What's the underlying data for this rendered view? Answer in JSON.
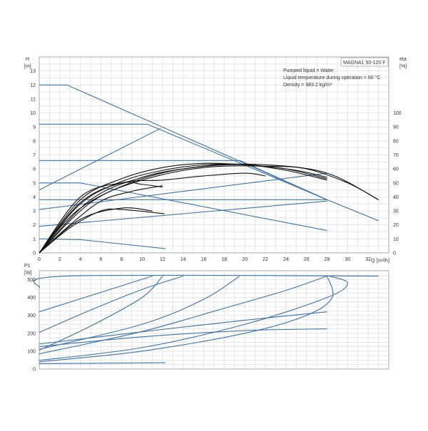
{
  "model_label": "MAGNA1 50-120 F",
  "info_lines": [
    "Pumped liquid = Water",
    "Liquid temperature during operation = 60 °C",
    "Density = 983.2 kg/m³"
  ],
  "colors": {
    "system_curves": "#3f73a0",
    "pump_curves": "#111111"
  },
  "chart_data": [
    {
      "type": "line",
      "name": "head",
      "ylabel": "H",
      "yunit": "[m]",
      "y2label": "eta",
      "y2unit": "[%]",
      "xlabel": "Q",
      "xunit": "[m³/h]",
      "xlim": [
        0,
        34
      ],
      "ylim": [
        0,
        14
      ],
      "y2lim": [
        0,
        140
      ],
      "x_ticks": [
        0,
        2,
        4,
        6,
        8,
        10,
        12,
        14,
        16,
        18,
        20,
        22,
        24,
        26,
        28,
        30,
        32
      ],
      "y_ticks": [
        0,
        1,
        2,
        3,
        4,
        5,
        6,
        7,
        8,
        9,
        10,
        11,
        12,
        13
      ],
      "y2_ticks": [
        0,
        10,
        20,
        30,
        40,
        50,
        60,
        70,
        80,
        90,
        100
      ],
      "grid": true,
      "control_curves": [
        {
          "points": [
            [
              0,
              12
            ],
            [
              2.7,
              12
            ],
            [
              28,
              3.8
            ],
            [
              33,
              2.3
            ]
          ]
        },
        {
          "points": [
            [
              0,
              9.2
            ],
            [
              10.5,
              9.2
            ],
            [
              28,
              3.8
            ]
          ]
        },
        {
          "points": [
            [
              0,
              6.6
            ],
            [
              19.5,
              6.6
            ],
            [
              28,
              3.8
            ]
          ]
        },
        {
          "points": [
            [
              0,
              5
            ],
            [
              4,
              5
            ],
            [
              28,
              1.6
            ]
          ]
        },
        {
          "points": [
            [
              0,
              3.8
            ],
            [
              28,
              3.8
            ]
          ]
        },
        {
          "points": [
            [
              0,
              1
            ],
            [
              4,
              0.95
            ],
            [
              12.3,
              0.3
            ]
          ]
        },
        {
          "points": [
            [
              0,
              4.5
            ],
            [
              11.8,
              8.9
            ]
          ]
        },
        {
          "points": [
            [
              0,
              3.1
            ],
            [
              28,
              5.7
            ]
          ]
        },
        {
          "points": [
            [
              0,
              1.9
            ],
            [
              28,
              3.7
            ]
          ]
        }
      ],
      "efficiency_curves": [
        {
          "points": [
            [
              0,
              0
            ],
            [
              4,
              36
            ],
            [
              8,
              50
            ],
            [
              12,
              52
            ],
            [
              16,
              55
            ],
            [
              20,
              57
            ],
            [
              22,
              55
            ]
          ]
        },
        {
          "points": [
            [
              0,
              0
            ],
            [
              4,
              40
            ],
            [
              8,
              50
            ],
            [
              10,
              49
            ],
            [
              12,
              47
            ]
          ]
        },
        {
          "points": [
            [
              0,
              0
            ],
            [
              3,
              20
            ],
            [
              6,
              37
            ],
            [
              9,
              44
            ],
            [
              12,
              48
            ]
          ]
        },
        {
          "points": [
            [
              0,
              0
            ],
            [
              4,
              24
            ],
            [
              8,
              32
            ],
            [
              11,
              30
            ]
          ]
        },
        {
          "points": [
            [
              0,
              0
            ],
            [
              3,
              18
            ],
            [
              6,
              30
            ],
            [
              8,
              31
            ],
            [
              12.2,
              28
            ]
          ]
        },
        {
          "points": [
            [
              0,
              0
            ],
            [
              4,
              38
            ],
            [
              8,
              53
            ],
            [
              12,
              61
            ],
            [
              16,
              64
            ],
            [
              20,
              63
            ],
            [
              24,
              60
            ],
            [
              28,
              53
            ]
          ]
        },
        {
          "points": [
            [
              0,
              0
            ],
            [
              4,
              35
            ],
            [
              8,
              51
            ],
            [
              12,
              59
            ],
            [
              16,
              63
            ],
            [
              20,
              63
            ],
            [
              24,
              59
            ],
            [
              28,
              52
            ]
          ]
        },
        {
          "points": [
            [
              0,
              0
            ],
            [
              5,
              38
            ],
            [
              10,
              54
            ],
            [
              15,
              61
            ],
            [
              20,
              63
            ],
            [
              25,
              59
            ],
            [
              28,
              54
            ]
          ]
        },
        {
          "points": [
            [
              0,
              0
            ],
            [
              4,
              32
            ],
            [
              10,
              53
            ],
            [
              16,
              62
            ],
            [
              22,
              63
            ],
            [
              28,
              57
            ],
            [
              33,
              38
            ]
          ]
        },
        {
          "points": [
            [
              0,
              0
            ],
            [
              5,
              36
            ],
            [
              10,
              52
            ],
            [
              16,
              61
            ],
            [
              22,
              62
            ],
            [
              26,
              60
            ],
            [
              30,
              50
            ],
            [
              33,
              38
            ]
          ]
        }
      ]
    },
    {
      "type": "line",
      "name": "power",
      "ylabel": "P1",
      "yunit": "[W]",
      "xlim": [
        0,
        34
      ],
      "ylim": [
        0,
        550
      ],
      "x_ticks": [
        0,
        2,
        4,
        6,
        8,
        10,
        12,
        14,
        16,
        18,
        20,
        22,
        24,
        26,
        28,
        30,
        32
      ],
      "y_ticks": [
        0,
        100,
        200,
        300,
        400,
        500
      ],
      "grid": true,
      "curves": [
        {
          "points": [
            [
              0,
              455
            ],
            [
              2.7,
              520
            ],
            [
              33,
              520
            ]
          ]
        },
        {
          "points": [
            [
              0,
              320
            ],
            [
              11,
              520
            ]
          ]
        },
        {
          "points": [
            [
              0,
              105
            ],
            [
              5,
              240
            ],
            [
              10,
              400
            ],
            [
              12,
              520
            ]
          ]
        },
        {
          "points": [
            [
              0,
              205
            ],
            [
              5,
              330
            ],
            [
              10,
              445
            ],
            [
              14,
              520
            ]
          ]
        },
        {
          "points": [
            [
              0,
              110
            ],
            [
              10,
              250
            ],
            [
              16,
              390
            ],
            [
              19.5,
              520
            ]
          ]
        },
        {
          "points": [
            [
              0,
              85
            ],
            [
              10,
              210
            ],
            [
              18,
              340
            ],
            [
              24,
              440
            ],
            [
              28,
              520
            ]
          ]
        },
        {
          "points": [
            [
              0,
              48
            ],
            [
              10,
              120
            ],
            [
              20,
              250
            ],
            [
              28,
              400
            ],
            [
              30,
              480
            ],
            [
              28.2,
              520
            ]
          ]
        },
        {
          "points": [
            [
              0,
              40
            ],
            [
              10,
              100
            ],
            [
              20,
              200
            ],
            [
              26,
              300
            ],
            [
              28.5,
              400
            ],
            [
              28,
              520
            ]
          ]
        },
        {
          "points": [
            [
              0,
              140
            ],
            [
              14,
              235
            ],
            [
              22,
              285
            ],
            [
              28,
              320
            ]
          ]
        },
        {
          "points": [
            [
              0,
              125
            ],
            [
              10,
              180
            ],
            [
              20,
              215
            ],
            [
              28,
              225
            ]
          ]
        },
        {
          "points": [
            [
              0,
              30
            ],
            [
              12.3,
              35
            ]
          ]
        }
      ]
    }
  ]
}
